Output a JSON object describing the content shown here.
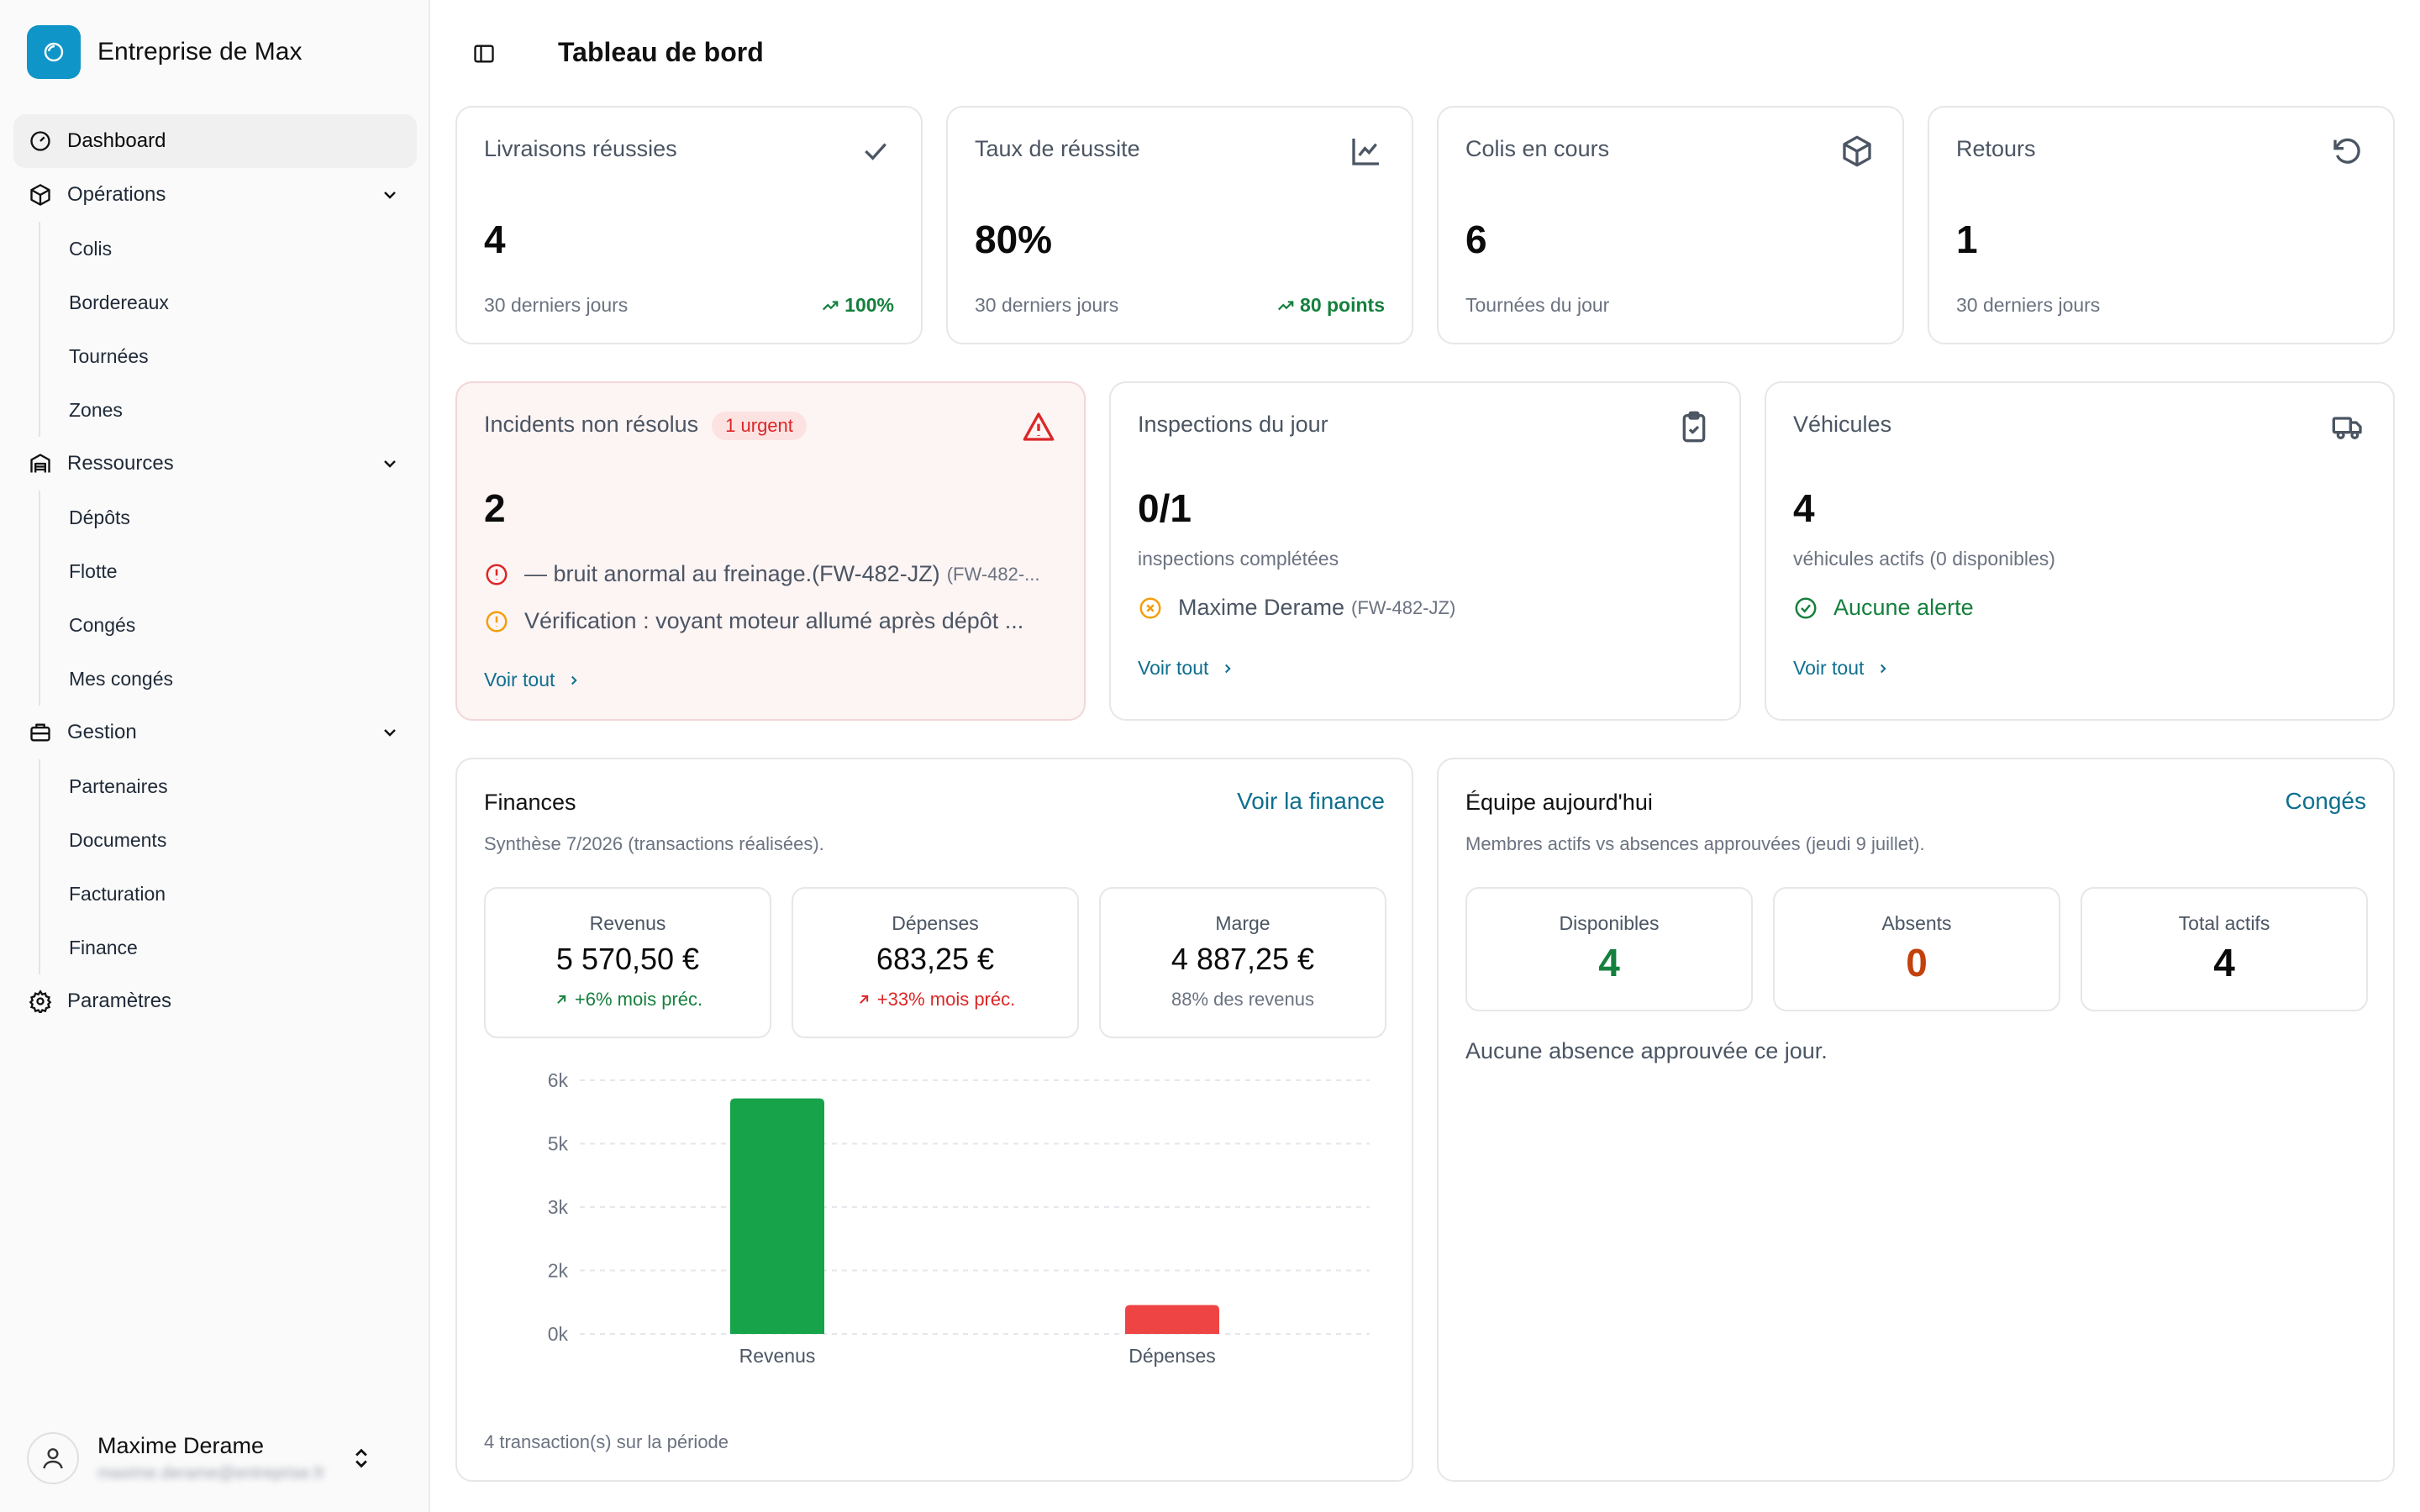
{
  "sidebar": {
    "brand": "Entreprise de Max",
    "items": {
      "dashboard": "Dashboard",
      "operations": "Opérations",
      "colis": "Colis",
      "bordereaux": "Bordereaux",
      "tournees": "Tournées",
      "zones": "Zones",
      "ressources": "Ressources",
      "depots": "Dépôts",
      "flotte": "Flotte",
      "conges": "Congés",
      "mes_conges": "Mes congés",
      "gestion": "Gestion",
      "partenaires": "Partenaires",
      "documents": "Documents",
      "facturation": "Facturation",
      "finance": "Finance",
      "parametres": "Paramètres"
    },
    "user": {
      "name": "Maxime Derame",
      "email": "maxime.derame@entreprise.fr"
    }
  },
  "header": {
    "title": "Tableau de bord"
  },
  "kpis": [
    {
      "title": "Livraisons réussies",
      "value": "4",
      "sub": "30 derniers jours",
      "trend": "100%",
      "icon": "check-icon"
    },
    {
      "title": "Taux de réussite",
      "value": "80%",
      "sub": "30 derniers jours",
      "trend": "80 points",
      "icon": "line-chart-icon"
    },
    {
      "title": "Colis en cours",
      "value": "6",
      "sub": "Tournées du jour",
      "icon": "package-icon"
    },
    {
      "title": "Retours",
      "value": "1",
      "sub": "30 derniers jours",
      "icon": "rotate-ccw-icon"
    }
  ],
  "incidents": {
    "title": "Incidents non résolus",
    "badge": "1 urgent",
    "value": "2",
    "lines": [
      {
        "text": "— bruit anormal au freinage.(FW-482-JZ)",
        "ref": "(FW-482-...",
        "severity": "high"
      },
      {
        "text": "Vérification : voyant moteur allumé après dépôt ...",
        "severity": "medium"
      }
    ],
    "link": "Voir tout"
  },
  "inspections": {
    "title": "Inspections du jour",
    "value": "0/1",
    "sub": "inspections complétées",
    "line_text": "Maxime Derame",
    "line_ref": "(FW-482-JZ)",
    "link": "Voir tout"
  },
  "vehicles": {
    "title": "Véhicules",
    "value": "4",
    "sub": "véhicules actifs (0 disponibles)",
    "status": "Aucune alerte",
    "link": "Voir tout"
  },
  "finances": {
    "title": "Finances",
    "link": "Voir la finance",
    "desc": "Synthèse 7/2026 (transactions réalisées).",
    "stats": [
      {
        "label": "Revenus",
        "value": "5 570,50 €",
        "note": "+6% mois préc."
      },
      {
        "label": "Dépenses",
        "value": "683,25 €",
        "note": "+33% mois préc."
      },
      {
        "label": "Marge",
        "value": "4 887,25 €",
        "note": "88% des revenus"
      }
    ],
    "footnote": "4 transaction(s) sur la période"
  },
  "team": {
    "title": "Équipe aujourd'hui",
    "link": "Congés",
    "desc": "Membres actifs vs absences approuvées (jeudi 9 juillet).",
    "stats": [
      {
        "label": "Disponibles",
        "value": "4"
      },
      {
        "label": "Absents",
        "value": "0"
      },
      {
        "label": "Total actifs",
        "value": "4"
      }
    ],
    "empty": "Aucune absence approuvée ce jour."
  },
  "colors": {
    "accent": "#0e6f8f",
    "brand": "#0f95c7",
    "success": "#15803d",
    "danger": "#dc2626",
    "warning": "#f59e0b",
    "orange": "#c2410c",
    "bar_revenue": "#16a34a",
    "bar_expense": "#ef4444"
  },
  "chart_data": {
    "type": "bar",
    "categories": [
      "Revenus",
      "Dépenses"
    ],
    "values": [
      5570.5,
      683.25
    ],
    "yticks": [
      "0k",
      "2k",
      "3k",
      "5k",
      "6k"
    ],
    "ytick_values": [
      0,
      1500,
      3000,
      4500,
      6000
    ],
    "ylim": [
      0,
      6000
    ],
    "grid": true,
    "colors": [
      "#16a34a",
      "#ef4444"
    ]
  }
}
